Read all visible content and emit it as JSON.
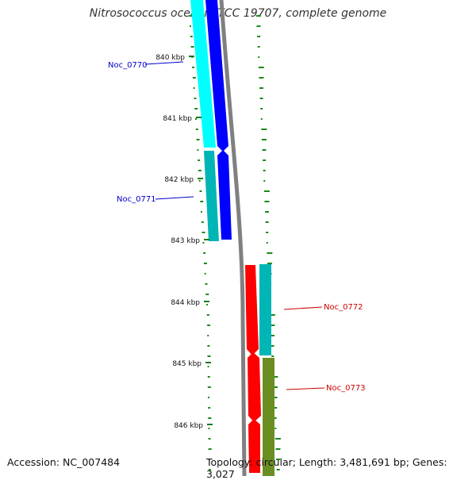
{
  "title": "Nitrosococcus oceani ATCC 19707, complete genome",
  "footer": {
    "accession": "Accession: NC_007484",
    "summary": "Topology: circular; Length: 3,481,691 bp; Genes: 3,027"
  },
  "ticks": [
    "840 kbp",
    "841 kbp",
    "842 kbp",
    "843 kbp",
    "844 kbp",
    "845 kbp",
    "846 kbp"
  ],
  "genes": [
    {
      "label": "Noc_0770",
      "strand": "minus",
      "color": "#0000cc"
    },
    {
      "label": "Noc_0771",
      "strand": "minus",
      "color": "#0000cc"
    },
    {
      "label": "Noc_0772",
      "strand": "plus",
      "color": "#cc0000"
    },
    {
      "label": "Noc_0773",
      "strand": "plus",
      "color": "#cc0000"
    }
  ],
  "colors": {
    "minus_strand_gene": "#0000ff",
    "plus_strand_gene": "#ff0000",
    "cog_cyan": "#00ffff",
    "cog_teal": "#00b8b8",
    "cog_olive": "#6b8e23",
    "backbone": "#808080",
    "gc_skew_dots": "#1a8a1a"
  }
}
